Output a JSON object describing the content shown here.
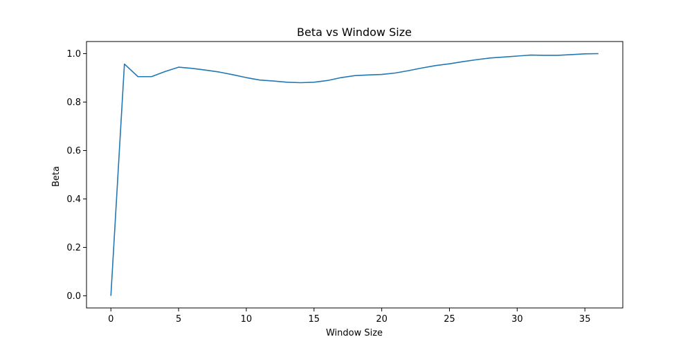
{
  "chart_data": {
    "type": "line",
    "title": "Beta vs Window Size",
    "xlabel": "Window Size",
    "ylabel": "Beta",
    "xlim": [
      -1.8,
      37.8
    ],
    "ylim": [
      -0.05,
      1.05
    ],
    "x_ticks": [
      0,
      5,
      10,
      15,
      20,
      25,
      30,
      35
    ],
    "y_ticks": [
      0.0,
      0.2,
      0.4,
      0.6,
      0.8,
      1.0
    ],
    "x_tick_labels": [
      "0",
      "5",
      "10",
      "15",
      "20",
      "25",
      "30",
      "35"
    ],
    "y_tick_labels": [
      "0.0",
      "0.2",
      "0.4",
      "0.6",
      "0.8",
      "1.0"
    ],
    "grid": false,
    "legend": "none",
    "series": [
      {
        "color": "#1f77b4",
        "x": [
          0,
          1,
          2,
          3,
          4,
          5,
          6,
          7,
          8,
          9,
          10,
          11,
          12,
          13,
          14,
          15,
          16,
          17,
          18,
          19,
          20,
          21,
          22,
          23,
          24,
          25,
          26,
          27,
          28,
          29,
          30,
          31,
          32,
          33,
          34,
          35,
          36
        ],
        "y": [
          0.0,
          0.957,
          0.905,
          0.905,
          0.926,
          0.944,
          0.939,
          0.932,
          0.924,
          0.913,
          0.901,
          0.891,
          0.887,
          0.882,
          0.88,
          0.882,
          0.889,
          0.901,
          0.909,
          0.912,
          0.914,
          0.92,
          0.93,
          0.941,
          0.951,
          0.958,
          0.967,
          0.975,
          0.982,
          0.986,
          0.99,
          0.994,
          0.993,
          0.993,
          0.996,
          0.999,
          1.0
        ]
      }
    ]
  }
}
